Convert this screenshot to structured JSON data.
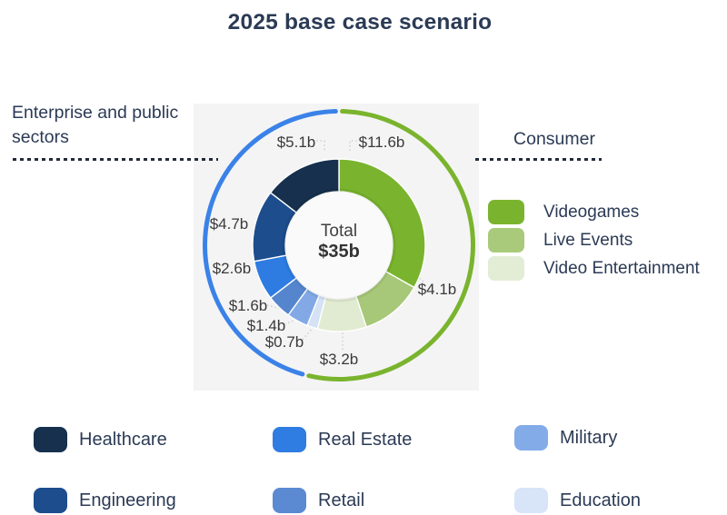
{
  "title": "2025 base case scenario",
  "annotations": {
    "left_group": "Enterprise and public sectors",
    "right_group": "Consumer"
  },
  "center": {
    "label": "Total",
    "value": "$35b"
  },
  "chart_data": {
    "type": "pie",
    "subtype": "donut",
    "title": "2025 base case scenario",
    "center_label": "Total",
    "center_value": "$35b",
    "total": 35,
    "unit": "billions USD",
    "segments": [
      {
        "label": "Videogames",
        "value": 11.6,
        "display": "$11.6b",
        "color": "#7ab42e",
        "group": "Consumer"
      },
      {
        "label": "Live Events",
        "value": 4.1,
        "display": "$4.1b",
        "color": "#a7c878",
        "group": "Consumer"
      },
      {
        "label": "Video Entertainment",
        "value": 3.2,
        "display": "$3.2b",
        "color": "#e1ebd1",
        "group": "Consumer"
      },
      {
        "label": "Education",
        "value": 0.7,
        "display": "$0.7b",
        "color": "#d5e2f6",
        "group": "Enterprise and public sectors"
      },
      {
        "label": "Military",
        "value": 1.4,
        "display": "$1.4b",
        "color": "#82a9e6",
        "group": "Enterprise and public sectors"
      },
      {
        "label": "Retail",
        "value": 1.6,
        "display": "$1.6b",
        "color": "#5586cd",
        "group": "Enterprise and public sectors"
      },
      {
        "label": "Real Estate",
        "value": 2.6,
        "display": "$2.6b",
        "color": "#2e7ce2",
        "group": "Enterprise and public sectors"
      },
      {
        "label": "Engineering",
        "value": 4.7,
        "display": "$4.7b",
        "color": "#1d4d8d",
        "group": "Enterprise and public sectors"
      },
      {
        "label": "Healthcare",
        "value": 5.1,
        "display": "$5.1b",
        "color": "#16304e",
        "group": "Enterprise and public sectors"
      }
    ],
    "group_arcs": {
      "consumer": {
        "label": "Consumer",
        "total": 18.9,
        "color": "#7ab42e"
      },
      "enterprise": {
        "label": "Enterprise and public sectors",
        "total": 16.1,
        "color": "#3b82e8"
      }
    },
    "legend_position": "right and bottom",
    "background": "#f4f4f4"
  },
  "legend_consumer": {
    "items": [
      {
        "label": "Videogames",
        "color": "#7ab42e"
      },
      {
        "label": "Live Events",
        "color": "#a9ca7b"
      },
      {
        "label": "Video Entertainment",
        "color": "#e3edd6"
      }
    ]
  },
  "legend_enterprise": {
    "items": [
      {
        "label": "Healthcare",
        "color": "#16304e"
      },
      {
        "label": "Real Estate",
        "color": "#2f7ce2"
      },
      {
        "label": "Military",
        "color": "#83abe8"
      },
      {
        "label": "Engineering",
        "color": "#1d4d8d"
      },
      {
        "label": "Retail",
        "color": "#5b8ad2"
      },
      {
        "label": "Education",
        "color": "#d8e4f8"
      }
    ]
  }
}
